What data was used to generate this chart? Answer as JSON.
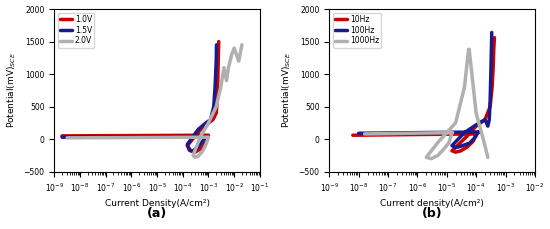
{
  "subplot_a": {
    "title": "(a)",
    "xlabel": "Current Density(A/cm²)",
    "xlim_log": [
      -9,
      -1
    ],
    "ylim": [
      -500,
      2000
    ],
    "yticks": [
      -500,
      0,
      500,
      1000,
      1500,
      2000
    ],
    "legend_labels": [
      "1.0V",
      "1.5V",
      "2.0V"
    ],
    "colors": [
      "#cc0000",
      "#1a1a8c",
      "#b0b0b0"
    ],
    "lw": 2.5
  },
  "subplot_b": {
    "title": "(b)",
    "xlabel": "Current density(A/cm²)",
    "xlim_log": [
      -9,
      -2
    ],
    "ylim": [
      -500,
      2000
    ],
    "yticks": [
      -500,
      0,
      500,
      1000,
      1500,
      2000
    ],
    "legend_labels": [
      "10Hz",
      "100Hz",
      "1000Hz"
    ],
    "colors": [
      "#cc0000",
      "#1a1a8c",
      "#b0b0b0"
    ],
    "lw": 2.5
  }
}
